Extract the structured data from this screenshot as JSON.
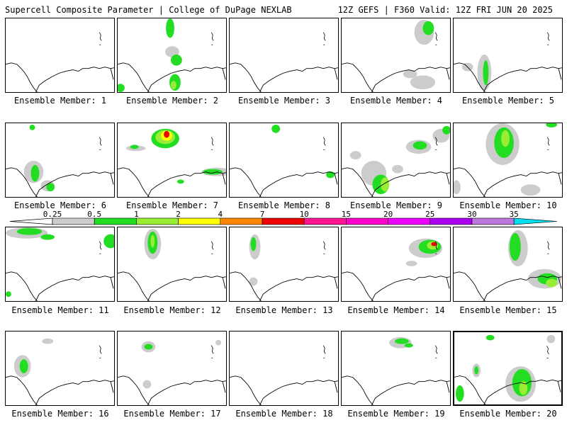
{
  "header": {
    "left_title": "Supercell Composite Parameter | College of DuPage NEXLAB",
    "right_title": "12Z GEFS | F360 Valid: 12Z FRI JUN 20 2025"
  },
  "colorbar": {
    "ticks": [
      "0.25",
      "0.5",
      "1",
      "2",
      "4",
      "7",
      "10",
      "15",
      "20",
      "25",
      "30",
      "35"
    ],
    "colors": [
      "#cccccc",
      "#22dd22",
      "#99ee33",
      "#ffff00",
      "#ff8800",
      "#ee0000",
      "#ff1493",
      "#ff00cc",
      "#ee00ff",
      "#aa00ee",
      "#bb77dd",
      "#00ddee"
    ]
  },
  "members": [
    {
      "label": "Ensemble Member: 1",
      "blobs": []
    },
    {
      "label": "Ensemble Member: 2",
      "blobs": []
    },
    {
      "label": "Ensemble Member: 3",
      "blobs": []
    },
    {
      "label": "Ensemble Member: 4",
      "blobs": []
    },
    {
      "label": "Ensemble Member: 5",
      "blobs": []
    },
    {
      "label": "Ensemble Member: 6",
      "blobs": []
    },
    {
      "label": "Ensemble Member: 7",
      "blobs": []
    },
    {
      "label": "Ensemble Member: 8",
      "blobs": []
    },
    {
      "label": "Ensemble Member: 9",
      "blobs": []
    },
    {
      "label": "Ensemble Member: 10",
      "blobs": []
    },
    {
      "label": "Ensemble Member: 11",
      "blobs": []
    },
    {
      "label": "Ensemble Member: 12",
      "blobs": []
    },
    {
      "label": "Ensemble Member: 13",
      "blobs": []
    },
    {
      "label": "Ensemble Member: 14",
      "blobs": []
    },
    {
      "label": "Ensemble Member: 15",
      "blobs": []
    },
    {
      "label": "Ensemble Member: 16",
      "blobs": []
    },
    {
      "label": "Ensemble Member: 17",
      "blobs": []
    },
    {
      "label": "Ensemble Member: 18",
      "blobs": []
    },
    {
      "label": "Ensemble Member: 19",
      "blobs": []
    },
    {
      "label": "Ensemble Member: 20",
      "blobs": []
    }
  ]
}
